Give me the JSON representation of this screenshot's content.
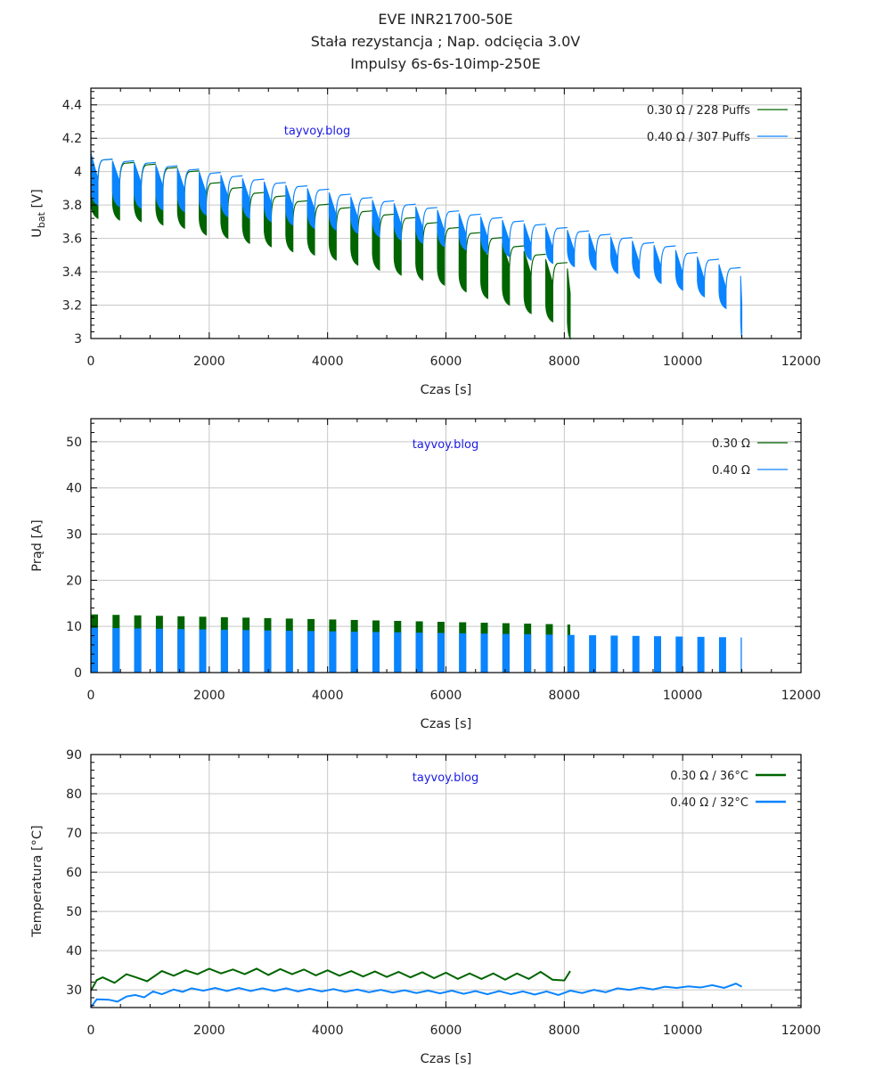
{
  "titles": [
    "EVE INR21700-50E",
    "Stała rezystancja ; Nap. odcięcia 3.0V",
    "Impulsy 6s-6s-10imp-250E"
  ],
  "watermark": "tayvoy.blog",
  "colors": {
    "green": "#006400",
    "blue": "#0a84ff",
    "grid": "#c8c8c8"
  },
  "chart_data": [
    {
      "type": "line",
      "title": "Voltage",
      "xlabel": "Czas [s]",
      "ylabel_main": "U",
      "ylabel_sub": "bat",
      "ylabel_unit": " [V]",
      "xlim": [
        0,
        12000
      ],
      "ylim": [
        3.0,
        4.5
      ],
      "xticks": [
        "0",
        "2000",
        "4000",
        "6000",
        "8000",
        "10000",
        "12000"
      ],
      "yticks": [
        "3",
        "3.2",
        "3.4",
        "3.6",
        "3.8",
        "4",
        "4.2",
        "4.4"
      ],
      "grid": true,
      "legend_position": "top-right",
      "series": [
        {
          "name": "0.30 Ω  /  228 Puffs",
          "color": "#006400",
          "end_time": 8100,
          "block_period": 366,
          "rest_voltage": [
            4.07,
            4.05,
            4.04,
            4.02,
            4.0,
            3.93,
            3.9,
            3.87,
            3.85,
            3.82,
            3.8,
            3.78,
            3.76,
            3.74,
            3.72,
            3.69,
            3.66,
            3.63,
            3.6,
            3.55,
            3.5,
            3.45,
            3.39
          ],
          "pulse_min_voltage": [
            3.72,
            3.71,
            3.7,
            3.68,
            3.66,
            3.62,
            3.6,
            3.57,
            3.55,
            3.52,
            3.5,
            3.47,
            3.44,
            3.41,
            3.38,
            3.35,
            3.32,
            3.28,
            3.24,
            3.2,
            3.15,
            3.1,
            3.0
          ]
        },
        {
          "name": "0.40 Ω  /  307 Puffs",
          "color": "#0a84ff",
          "end_time": 11000,
          "block_period": 366,
          "rest_voltage": [
            4.07,
            4.06,
            4.05,
            4.03,
            4.01,
            3.99,
            3.97,
            3.95,
            3.93,
            3.91,
            3.89,
            3.86,
            3.84,
            3.82,
            3.8,
            3.78,
            3.76,
            3.74,
            3.72,
            3.7,
            3.68,
            3.66,
            3.64,
            3.62,
            3.6,
            3.57,
            3.55,
            3.51,
            3.47,
            3.42,
            3.33
          ],
          "pulse_min_voltage": [
            3.8,
            3.79,
            3.78,
            3.77,
            3.76,
            3.74,
            3.73,
            3.72,
            3.7,
            3.68,
            3.66,
            3.65,
            3.63,
            3.61,
            3.59,
            3.57,
            3.55,
            3.53,
            3.51,
            3.49,
            3.47,
            3.45,
            3.43,
            3.41,
            3.39,
            3.36,
            3.33,
            3.29,
            3.25,
            3.18,
            3.0
          ]
        }
      ]
    },
    {
      "type": "bar",
      "title": "Current",
      "xlabel": "Czas [s]",
      "ylabel": "Prąd [A]",
      "xlim": [
        0,
        12000
      ],
      "ylim": [
        0,
        55
      ],
      "xticks": [
        "0",
        "2000",
        "4000",
        "6000",
        "8000",
        "10000",
        "12000"
      ],
      "yticks": [
        "0",
        "10",
        "20",
        "30",
        "40",
        "50"
      ],
      "grid": true,
      "legend_position": "top-right",
      "series": [
        {
          "name": "0.30 Ω",
          "color": "#006400",
          "end_time": 8100,
          "pulse_current_start": 12.6,
          "pulse_current_end": 10.4
        },
        {
          "name": "0.40 Ω",
          "color": "#0a84ff",
          "end_time": 11000,
          "pulse_current_start": 9.7,
          "pulse_current_end": 7.6
        }
      ]
    },
    {
      "type": "line",
      "title": "Temperature",
      "xlabel": "Czas [s]",
      "ylabel": "Temperatura [°C]",
      "xlim": [
        0,
        12000
      ],
      "ylim": [
        25.5,
        90
      ],
      "xticks": [
        "0",
        "2000",
        "4000",
        "6000",
        "8000",
        "10000",
        "12000"
      ],
      "yticks": [
        "30",
        "40",
        "50",
        "60",
        "70",
        "80",
        "90"
      ],
      "grid": true,
      "legend_position": "top-right",
      "series": [
        {
          "name": "0.30 Ω  / 36°C",
          "color": "#006400",
          "x": [
            0,
            100,
            200,
            400,
            600,
            800,
            950,
            1200,
            1400,
            1600,
            1800,
            2000,
            2200,
            2400,
            2600,
            2800,
            3000,
            3200,
            3400,
            3600,
            3800,
            4000,
            4200,
            4400,
            4600,
            4800,
            5000,
            5200,
            5400,
            5600,
            5800,
            6000,
            6200,
            6400,
            6600,
            6800,
            7000,
            7200,
            7400,
            7600,
            7800,
            8000,
            8100
          ],
          "y": [
            29.8,
            32.5,
            33.2,
            31.8,
            34.0,
            33.0,
            32.2,
            34.8,
            33.6,
            35.0,
            34.0,
            35.4,
            34.2,
            35.2,
            34.0,
            35.4,
            33.8,
            35.3,
            34.0,
            35.2,
            33.7,
            35.0,
            33.6,
            34.8,
            33.4,
            34.7,
            33.3,
            34.6,
            33.2,
            34.5,
            33.0,
            34.4,
            32.8,
            34.2,
            32.8,
            34.2,
            32.6,
            34.2,
            32.8,
            34.6,
            32.6,
            32.4,
            34.8
          ]
        },
        {
          "name": "0.40 Ω  / 32°C",
          "color": "#0a84ff",
          "x": [
            0,
            100,
            300,
            450,
            600,
            750,
            900,
            1050,
            1200,
            1400,
            1550,
            1700,
            1900,
            2100,
            2300,
            2500,
            2700,
            2900,
            3100,
            3300,
            3500,
            3700,
            3900,
            4100,
            4300,
            4500,
            4700,
            4900,
            5100,
            5300,
            5500,
            5700,
            5900,
            6100,
            6300,
            6500,
            6700,
            6900,
            7100,
            7300,
            7500,
            7700,
            7900,
            8100,
            8300,
            8500,
            8700,
            8900,
            9100,
            9300,
            9500,
            9700,
            9900,
            10100,
            10300,
            10500,
            10700,
            10900,
            11000
          ],
          "y": [
            25.6,
            27.6,
            27.5,
            27.0,
            28.3,
            28.7,
            28.1,
            29.6,
            28.9,
            30.1,
            29.5,
            30.4,
            29.8,
            30.5,
            29.7,
            30.5,
            29.7,
            30.4,
            29.7,
            30.4,
            29.6,
            30.3,
            29.6,
            30.2,
            29.5,
            30.1,
            29.4,
            30.0,
            29.3,
            29.9,
            29.2,
            29.8,
            29.1,
            29.8,
            29.0,
            29.7,
            28.9,
            29.7,
            28.9,
            29.6,
            28.8,
            29.6,
            28.7,
            29.8,
            29.2,
            30.0,
            29.4,
            30.4,
            30.0,
            30.6,
            30.1,
            30.8,
            30.5,
            30.9,
            30.6,
            31.2,
            30.5,
            31.6,
            30.8
          ]
        }
      ]
    }
  ]
}
